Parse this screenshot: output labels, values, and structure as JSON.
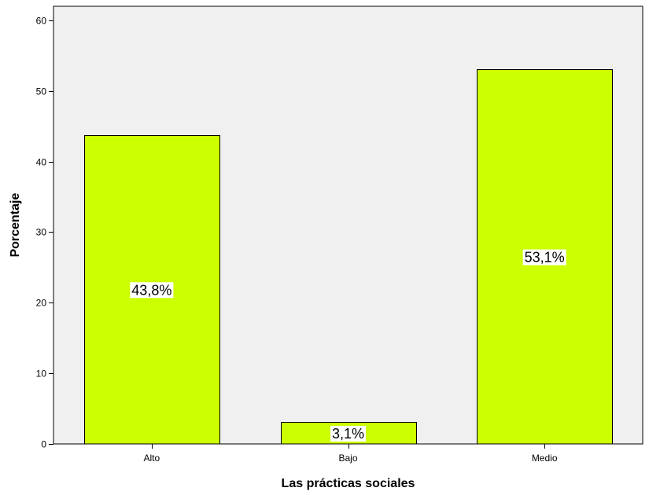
{
  "chart_data": {
    "type": "bar",
    "title": "",
    "xlabel": "Las prácticas sociales",
    "ylabel": "Porcentaje",
    "categories": [
      "Alto",
      "Bajo",
      "Medio"
    ],
    "values": [
      43.8,
      3.1,
      53.1
    ],
    "data_labels": [
      "43,8%",
      "3,1%",
      "53,1%"
    ],
    "ylim": [
      0,
      62
    ],
    "yticks": [
      0,
      10,
      20,
      30,
      40,
      50,
      60
    ],
    "grid": false,
    "legend": "none",
    "colors": {
      "bar_fill": "#ccff00",
      "bar_stroke": "#000000",
      "plot_background": "#f0f0f0",
      "page_background": "#ffffff",
      "label_background": "#ffffff"
    }
  }
}
